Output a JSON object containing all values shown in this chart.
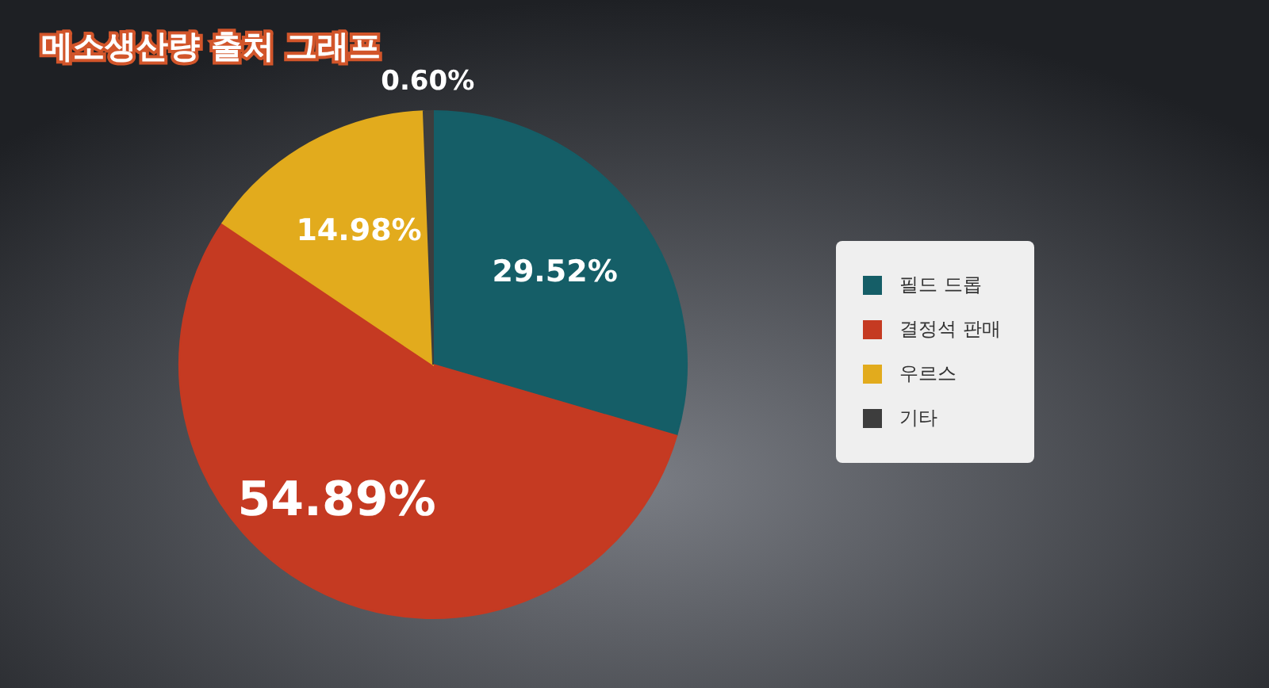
{
  "chart_data": {
    "type": "pie",
    "title": "메소생산량 출처 그래프",
    "categories": [
      "필드 드롭",
      "결정석 판매",
      "우르스",
      "기타"
    ],
    "values": [
      29.52,
      54.89,
      14.98,
      0.6
    ],
    "colors": [
      "#155e67",
      "#c53a22",
      "#e2ab1d",
      "#3d3d3d"
    ],
    "value_labels": [
      "29.52%",
      "54.89%",
      "14.98%",
      "0.60%"
    ],
    "legend": "right"
  }
}
